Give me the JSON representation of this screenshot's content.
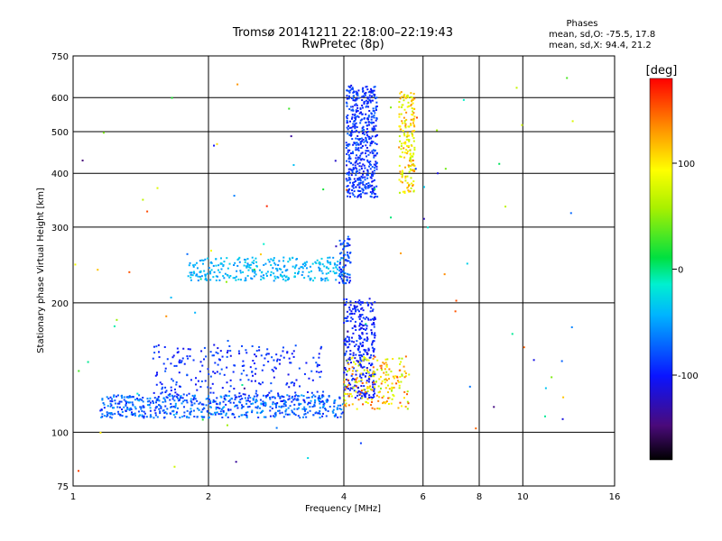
{
  "header": {
    "title_line1": "Tromsø 20141211 22:18:00–22:19:43",
    "title_line2": "RwPretec (8p)",
    "phases_label": "Phases",
    "phases_o": "mean, sd,O: -75.5, 17.8",
    "phases_x": "mean, sd,X:  94.4, 21.2"
  },
  "chart_data": {
    "type": "scatter",
    "xlabel": "Frequency [MHz]",
    "ylabel": "Stationary phase Virtual Height [km]",
    "x_scale": "log",
    "y_scale": "log",
    "xlim": [
      1,
      16
    ],
    "ylim": [
      75,
      750
    ],
    "x_ticks": [
      {
        "v": 1,
        "label": "1"
      },
      {
        "v": 2,
        "label": "2"
      },
      {
        "v": 4,
        "label": "4"
      },
      {
        "v": 6,
        "label": "6"
      },
      {
        "v": 8,
        "label": "8"
      },
      {
        "v": 10,
        "label": "10"
      },
      {
        "v": 16,
        "label": "16"
      }
    ],
    "y_ticks": [
      {
        "v": 75,
        "label": "75"
      },
      {
        "v": 100,
        "label": "100"
      },
      {
        "v": 200,
        "label": "200"
      },
      {
        "v": 300,
        "label": "300"
      },
      {
        "v": 400,
        "label": "400"
      },
      {
        "v": 500,
        "label": "500"
      },
      {
        "v": 600,
        "label": "600"
      },
      {
        "v": 750,
        "label": "750"
      }
    ],
    "grid": true,
    "colorbar": {
      "label": "[deg]",
      "range": [
        -180,
        180
      ],
      "ticks": [
        {
          "v": 100,
          "label": "100"
        },
        {
          "v": 0,
          "label": "0"
        },
        {
          "v": -100,
          "label": "-100"
        }
      ]
    },
    "clusters": [
      {
        "f": [
          4.05,
          4.75
        ],
        "h": [
          350,
          640
        ],
        "phase": [
          -110,
          -70
        ],
        "count": 520
      },
      {
        "f": [
          5.3,
          5.75
        ],
        "h": [
          360,
          620
        ],
        "phase": [
          60,
          140
        ],
        "count": 190
      },
      {
        "f": [
          1.8,
          4.0
        ],
        "h": [
          225,
          255
        ],
        "phase": [
          -60,
          -25
        ],
        "count": 300
      },
      {
        "f": [
          3.9,
          4.15
        ],
        "h": [
          220,
          285
        ],
        "phase": [
          -110,
          -60
        ],
        "count": 70
      },
      {
        "f": [
          1.15,
          4.0
        ],
        "h": [
          108,
          122
        ],
        "phase": [
          -100,
          -45
        ],
        "count": 600
      },
      {
        "f": [
          1.5,
          3.6
        ],
        "h": [
          118,
          160
        ],
        "phase": [
          -110,
          -75
        ],
        "count": 260
      },
      {
        "f": [
          4.0,
          4.7
        ],
        "h": [
          120,
          205
        ],
        "phase": [
          -115,
          -80
        ],
        "count": 330
      },
      {
        "f": [
          4.0,
          5.6
        ],
        "h": [
          113,
          150
        ],
        "phase": [
          50,
          160
        ],
        "count": 200
      },
      {
        "f": [
          1.0,
          14.0
        ],
        "h": [
          78,
          700
        ],
        "phase": [
          -150,
          170
        ],
        "count": 90
      }
    ]
  }
}
